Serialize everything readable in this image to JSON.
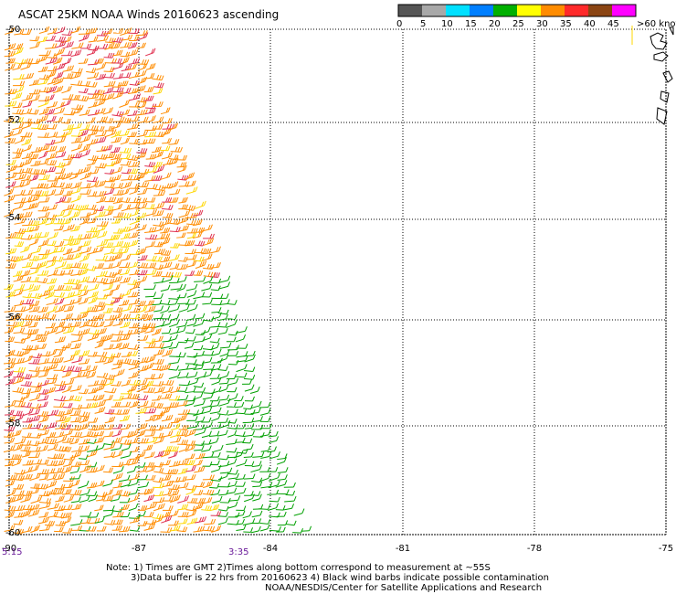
{
  "title": "ASCAT 25KM NOAA Winds 20160623 ascending",
  "speed_scale": {
    "ticks": [
      "0",
      "5",
      "10",
      "15",
      "20",
      "25",
      "30",
      "35",
      "40",
      "45",
      ">60"
    ],
    "unit": "knots",
    "colors": [
      "#555555",
      "#a8a8a8",
      "#00e0ff",
      "#007fff",
      "#00b000",
      "#ffff00",
      "#ff8c00",
      "#ff2a2a",
      "#8b4513",
      "#ff00ff",
      "#7a00a0"
    ]
  },
  "map": {
    "lat_labels": [
      "-50",
      "-52",
      "-54",
      "-56",
      "-58",
      "-60"
    ],
    "lon_labels": [
      "-90",
      "-87",
      "-84",
      "-81",
      "-78",
      "-75"
    ],
    "time_labels": [
      "5:15",
      "3:35"
    ],
    "swath_colors": {
      "north": "#ff8c00",
      "high": "#e0304f",
      "moderate": "#ffd700",
      "light": "#ffe600",
      "calm": "#00a000",
      "flag": "#c8202a"
    }
  },
  "notes": {
    "line1": "Note: 1) Times are GMT 2)Times along bottom correspond to measurement at ~55S",
    "line2": "3)Data buffer is 22 hrs from 20160623 4) Black wind barbs indicate possible contamination",
    "line3": "NOAA/NESDIS/Center for Satellite Applications and Research"
  }
}
